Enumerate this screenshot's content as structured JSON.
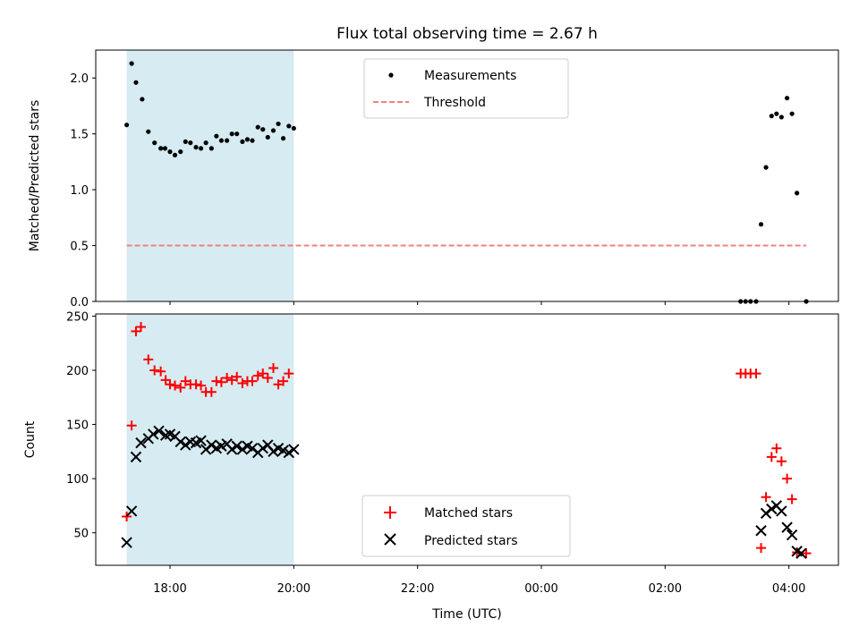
{
  "chart_data": {
    "title": "Flux total observing time = 2.67 h",
    "shaded_band": {
      "x_range": [
        17.3,
        20.0
      ],
      "color": "#add8e6",
      "opacity": 0.5
    },
    "x_axis": {
      "label": "Time (UTC)",
      "range_hours": [
        16.8,
        28.8
      ],
      "ticks": [
        {
          "v": 18,
          "label": "18:00"
        },
        {
          "v": 20,
          "label": "20:00"
        },
        {
          "v": 22,
          "label": "22:00"
        },
        {
          "v": 24,
          "label": "00:00"
        },
        {
          "v": 26,
          "label": "02:00"
        },
        {
          "v": 28,
          "label": "04:00"
        }
      ]
    },
    "top": {
      "type": "scatter",
      "ylabel": "Matched/Predicted stars",
      "ylim": [
        0,
        2.25
      ],
      "yticks": [
        {
          "v": 0,
          "label": "0.0"
        },
        {
          "v": 0.5,
          "label": "0.5"
        },
        {
          "v": 1.0,
          "label": "1.0"
        },
        {
          "v": 1.5,
          "label": "1.5"
        },
        {
          "v": 2.0,
          "label": "2.0"
        }
      ],
      "legend": [
        {
          "name": "Measurements",
          "color": "#000000"
        },
        {
          "name": "Threshold",
          "color": "#f08080"
        }
      ],
      "threshold": {
        "y": 0.5,
        "x_range": [
          17.3,
          28.28
        ],
        "color": "#f08080"
      },
      "measurements": [
        {
          "x": 17.3,
          "y": 1.58
        },
        {
          "x": 17.38,
          "y": 2.13
        },
        {
          "x": 17.45,
          "y": 1.96
        },
        {
          "x": 17.55,
          "y": 1.81
        },
        {
          "x": 17.65,
          "y": 1.52
        },
        {
          "x": 17.75,
          "y": 1.42
        },
        {
          "x": 17.85,
          "y": 1.37
        },
        {
          "x": 17.92,
          "y": 1.37
        },
        {
          "x": 18.0,
          "y": 1.34
        },
        {
          "x": 18.08,
          "y": 1.31
        },
        {
          "x": 18.17,
          "y": 1.34
        },
        {
          "x": 18.25,
          "y": 1.43
        },
        {
          "x": 18.33,
          "y": 1.42
        },
        {
          "x": 18.42,
          "y": 1.38
        },
        {
          "x": 18.5,
          "y": 1.37
        },
        {
          "x": 18.58,
          "y": 1.42
        },
        {
          "x": 18.67,
          "y": 1.37
        },
        {
          "x": 18.75,
          "y": 1.48
        },
        {
          "x": 18.83,
          "y": 1.44
        },
        {
          "x": 18.92,
          "y": 1.44
        },
        {
          "x": 19.0,
          "y": 1.5
        },
        {
          "x": 19.08,
          "y": 1.5
        },
        {
          "x": 19.17,
          "y": 1.43
        },
        {
          "x": 19.25,
          "y": 1.45
        },
        {
          "x": 19.33,
          "y": 1.44
        },
        {
          "x": 19.42,
          "y": 1.56
        },
        {
          "x": 19.5,
          "y": 1.54
        },
        {
          "x": 19.58,
          "y": 1.47
        },
        {
          "x": 19.67,
          "y": 1.53
        },
        {
          "x": 19.75,
          "y": 1.59
        },
        {
          "x": 19.83,
          "y": 1.46
        },
        {
          "x": 19.92,
          "y": 1.57
        },
        {
          "x": 20.0,
          "y": 1.55
        },
        {
          "x": 27.22,
          "y": 0.0
        },
        {
          "x": 27.3,
          "y": 0.0
        },
        {
          "x": 27.38,
          "y": 0.0
        },
        {
          "x": 27.47,
          "y": 0.0
        },
        {
          "x": 27.55,
          "y": 0.69
        },
        {
          "x": 27.63,
          "y": 1.2
        },
        {
          "x": 27.72,
          "y": 1.66
        },
        {
          "x": 27.8,
          "y": 1.68
        },
        {
          "x": 27.88,
          "y": 1.65
        },
        {
          "x": 27.97,
          "y": 1.82
        },
        {
          "x": 28.05,
          "y": 1.68
        },
        {
          "x": 28.13,
          "y": 0.97
        },
        {
          "x": 28.28,
          "y": 0.0
        }
      ]
    },
    "bottom": {
      "type": "scatter",
      "ylabel": "Count",
      "ylim": [
        20,
        252
      ],
      "yticks": [
        {
          "v": 50,
          "label": "50"
        },
        {
          "v": 100,
          "label": "100"
        },
        {
          "v": 150,
          "label": "150"
        },
        {
          "v": 200,
          "label": "200"
        },
        {
          "v": 250,
          "label": "250"
        }
      ],
      "legend": [
        {
          "name": "Matched stars",
          "color": "#ff0000",
          "marker": "+"
        },
        {
          "name": "Predicted stars",
          "color": "#000000",
          "marker": "x"
        }
      ],
      "matched": [
        {
          "x": 17.3,
          "y": 65
        },
        {
          "x": 17.38,
          "y": 149
        },
        {
          "x": 17.45,
          "y": 236
        },
        {
          "x": 17.53,
          "y": 240
        },
        {
          "x": 17.65,
          "y": 210
        },
        {
          "x": 17.75,
          "y": 200
        },
        {
          "x": 17.85,
          "y": 199
        },
        {
          "x": 17.93,
          "y": 191
        },
        {
          "x": 18.0,
          "y": 187
        },
        {
          "x": 18.08,
          "y": 186
        },
        {
          "x": 18.17,
          "y": 184
        },
        {
          "x": 18.25,
          "y": 190
        },
        {
          "x": 18.33,
          "y": 187
        },
        {
          "x": 18.42,
          "y": 187
        },
        {
          "x": 18.5,
          "y": 186
        },
        {
          "x": 18.58,
          "y": 180
        },
        {
          "x": 18.67,
          "y": 180
        },
        {
          "x": 18.75,
          "y": 190
        },
        {
          "x": 18.83,
          "y": 189
        },
        {
          "x": 18.92,
          "y": 193
        },
        {
          "x": 19.0,
          "y": 191
        },
        {
          "x": 19.08,
          "y": 194
        },
        {
          "x": 19.17,
          "y": 188
        },
        {
          "x": 19.25,
          "y": 190
        },
        {
          "x": 19.33,
          "y": 190
        },
        {
          "x": 19.42,
          "y": 195
        },
        {
          "x": 19.5,
          "y": 197
        },
        {
          "x": 19.58,
          "y": 193
        },
        {
          "x": 19.67,
          "y": 202
        },
        {
          "x": 19.75,
          "y": 187
        },
        {
          "x": 19.83,
          "y": 190
        },
        {
          "x": 19.92,
          "y": 197
        },
        {
          "x": 27.22,
          "y": 197
        },
        {
          "x": 27.3,
          "y": 197
        },
        {
          "x": 27.38,
          "y": 197
        },
        {
          "x": 27.47,
          "y": 197
        },
        {
          "x": 27.55,
          "y": 36
        },
        {
          "x": 27.63,
          "y": 83
        },
        {
          "x": 27.72,
          "y": 120
        },
        {
          "x": 27.8,
          "y": 128
        },
        {
          "x": 27.88,
          "y": 116
        },
        {
          "x": 27.97,
          "y": 100
        },
        {
          "x": 28.05,
          "y": 81
        },
        {
          "x": 28.13,
          "y": 32
        },
        {
          "x": 28.28,
          "y": 31
        }
      ],
      "predicted": [
        {
          "x": 17.3,
          "y": 41
        },
        {
          "x": 17.38,
          "y": 70
        },
        {
          "x": 17.45,
          "y": 120
        },
        {
          "x": 17.53,
          "y": 133
        },
        {
          "x": 17.65,
          "y": 137
        },
        {
          "x": 17.73,
          "y": 141
        },
        {
          "x": 17.82,
          "y": 144
        },
        {
          "x": 17.93,
          "y": 140
        },
        {
          "x": 18.0,
          "y": 141
        },
        {
          "x": 18.08,
          "y": 139
        },
        {
          "x": 18.17,
          "y": 134
        },
        {
          "x": 18.25,
          "y": 131
        },
        {
          "x": 18.33,
          "y": 134
        },
        {
          "x": 18.42,
          "y": 133
        },
        {
          "x": 18.5,
          "y": 135
        },
        {
          "x": 18.58,
          "y": 127
        },
        {
          "x": 18.67,
          "y": 131
        },
        {
          "x": 18.75,
          "y": 128
        },
        {
          "x": 18.83,
          "y": 130
        },
        {
          "x": 18.92,
          "y": 132
        },
        {
          "x": 19.0,
          "y": 127
        },
        {
          "x": 19.08,
          "y": 130
        },
        {
          "x": 19.17,
          "y": 127
        },
        {
          "x": 19.25,
          "y": 130
        },
        {
          "x": 19.33,
          "y": 128
        },
        {
          "x": 19.42,
          "y": 124
        },
        {
          "x": 19.5,
          "y": 128
        },
        {
          "x": 19.58,
          "y": 131
        },
        {
          "x": 19.67,
          "y": 125
        },
        {
          "x": 19.75,
          "y": 128
        },
        {
          "x": 19.83,
          "y": 126
        },
        {
          "x": 19.92,
          "y": 124
        },
        {
          "x": 20.0,
          "y": 127
        },
        {
          "x": 27.55,
          "y": 52
        },
        {
          "x": 27.63,
          "y": 68
        },
        {
          "x": 27.72,
          "y": 72
        },
        {
          "x": 27.8,
          "y": 75
        },
        {
          "x": 27.88,
          "y": 70
        },
        {
          "x": 27.97,
          "y": 55
        },
        {
          "x": 28.05,
          "y": 48
        },
        {
          "x": 28.13,
          "y": 33
        },
        {
          "x": 28.2,
          "y": 31
        }
      ]
    }
  }
}
